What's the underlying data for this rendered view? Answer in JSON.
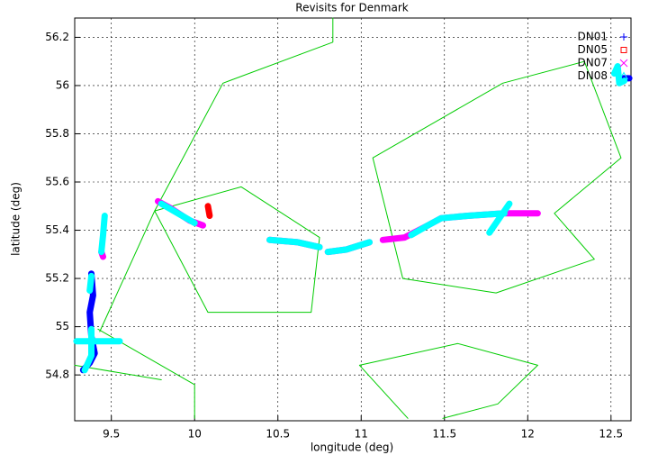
{
  "chart_data": {
    "type": "line",
    "title": "Revisits for Denmark",
    "x_label": "longitude (deg)",
    "y_label": "latitude (deg)",
    "xlim": [
      9.28,
      12.62
    ],
    "ylim": [
      54.61,
      56.28
    ],
    "xticks": [
      9.5,
      10,
      10.5,
      11,
      11.5,
      12,
      12.5
    ],
    "yticks": [
      54.8,
      55,
      55.2,
      55.4,
      55.6,
      55.8,
      56,
      56.2
    ],
    "grid": true,
    "legend": "top-right",
    "outlines": {
      "color": "#00cc00",
      "x": [
        10.83,
        10.83,
        10.17,
        9.76,
        9.43,
        null,
        9.28,
        9.8,
        null,
        9.42,
        10.0,
        10.0,
        null,
        9.76,
        10.28,
        10.75,
        10.7,
        10.08,
        9.76,
        null,
        11.07,
        11.85,
        12.34,
        12.56,
        12.16,
        12.4,
        11.81,
        11.25,
        11.07,
        null,
        10.99,
        11.58,
        12.06,
        11.82,
        11.49,
        null,
        10.99,
        11.28
      ],
      "values": [
        56.28,
        56.18,
        56.01,
        55.48,
        54.98,
        null,
        54.84,
        54.78,
        null,
        54.99,
        54.76,
        54.62,
        null,
        55.48,
        55.58,
        55.37,
        55.06,
        55.06,
        55.48,
        null,
        55.7,
        56.01,
        56.1,
        55.7,
        55.47,
        55.28,
        55.14,
        55.2,
        55.7,
        null,
        54.84,
        54.93,
        54.84,
        54.68,
        54.62,
        null,
        54.84,
        54.62
      ]
    },
    "series": [
      {
        "name": "DN01",
        "color": "#0000ff",
        "x": [
          9.38,
          9.39,
          9.37,
          9.38,
          9.4,
          9.37,
          9.33,
          null,
          12.57,
          12.61
        ],
        "values": [
          55.22,
          55.13,
          55.06,
          54.96,
          54.89,
          54.85,
          54.82,
          null,
          56.03,
          56.03
        ]
      },
      {
        "name": "DN05",
        "color": "#ff0000",
        "x": [
          10.08,
          10.09
        ],
        "values": [
          55.5,
          55.46
        ]
      },
      {
        "name": "DN07",
        "color": "#ff00ff",
        "x": [
          9.78,
          9.86,
          9.97,
          10.05,
          null,
          9.45,
          9.44,
          null,
          10.45,
          10.62,
          10.75,
          null,
          10.8,
          10.91,
          11.05,
          null,
          11.13,
          11.26,
          11.4,
          11.48,
          11.64,
          11.86,
          12.06
        ],
        "values": [
          55.52,
          55.49,
          55.44,
          55.42,
          null,
          55.29,
          55.31,
          null,
          55.36,
          55.35,
          55.33,
          null,
          55.31,
          55.32,
          55.35,
          null,
          55.36,
          55.37,
          55.42,
          55.45,
          55.46,
          55.47,
          55.47
        ]
      },
      {
        "name": "DN08",
        "color": "#00ffff",
        "x": [
          9.8,
          9.9,
          10.0,
          null,
          9.46,
          9.45,
          9.44,
          null,
          9.38,
          9.37,
          null,
          9.29,
          9.38,
          9.55,
          null,
          9.38,
          9.38,
          9.34,
          null,
          10.45,
          10.62,
          10.75,
          null,
          10.8,
          10.91,
          11.05,
          null,
          11.3,
          11.4,
          11.48,
          11.64,
          11.86,
          null,
          11.77,
          11.89,
          null,
          12.52,
          12.54,
          12.55,
          12.58
        ],
        "values": [
          55.51,
          55.47,
          55.43,
          null,
          55.46,
          55.38,
          55.31,
          null,
          55.21,
          55.15,
          null,
          54.94,
          54.94,
          54.94,
          null,
          54.99,
          54.88,
          54.82,
          null,
          55.36,
          55.35,
          55.33,
          null,
          55.31,
          55.32,
          55.35,
          null,
          55.38,
          55.42,
          55.45,
          55.46,
          55.47,
          null,
          55.39,
          55.51,
          null,
          56.05,
          56.08,
          56.01,
          56.02
        ]
      }
    ]
  }
}
